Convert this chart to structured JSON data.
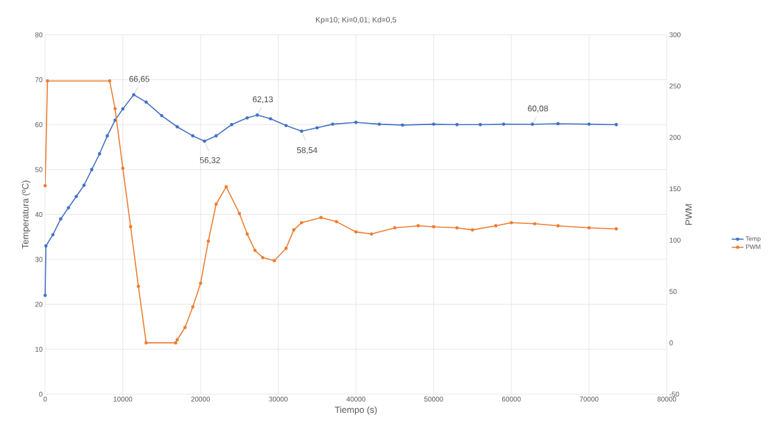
{
  "chart_data": {
    "type": "line",
    "title": "Kp=10; Ki=0,01; Kd=0,5",
    "xlabel": "Tiempo (s)",
    "ylabel": "Temperatura (ºC)",
    "y2label": "PWM",
    "xlim": [
      0,
      80000
    ],
    "xticks": [
      0,
      10000,
      20000,
      30000,
      40000,
      50000,
      60000,
      70000,
      80000
    ],
    "ylim": [
      0,
      80
    ],
    "yticks": [
      0,
      10,
      20,
      30,
      40,
      50,
      60,
      70,
      80
    ],
    "y2lim": [
      -50,
      300
    ],
    "y2ticks": [
      -50,
      0,
      50,
      100,
      150,
      200,
      250,
      300
    ],
    "grid": true,
    "legend": "right",
    "marker": "circle",
    "line_style": "solid",
    "series": [
      {
        "name": "Temp",
        "color": "#4472c4",
        "x": [
          0,
          100,
          1000,
          2000,
          3000,
          4000,
          5000,
          6000,
          7000,
          8000,
          9000,
          10000,
          11400,
          13000,
          15000,
          17000,
          19000,
          20500,
          22000,
          24000,
          26000,
          27300,
          29000,
          31000,
          33000,
          35000,
          37000,
          40000,
          43000,
          46000,
          50000,
          53000,
          56000,
          59000,
          62700,
          66000,
          70000,
          73500
        ],
        "values": [
          22,
          33,
          35.5,
          39,
          41.5,
          44,
          46.5,
          50,
          53.5,
          57.5,
          61,
          63.5,
          66.65,
          65,
          62,
          59.5,
          57.5,
          56.32,
          57.5,
          60,
          61.5,
          62.13,
          61.3,
          59.8,
          58.54,
          59.3,
          60.1,
          60.5,
          60.1,
          59.9,
          60.1,
          60,
          60,
          60.1,
          60.08,
          60.2,
          60.1,
          60
        ]
      },
      {
        "name": "PWM",
        "color": "#ed7d31",
        "axis": "y2",
        "x": [
          0,
          300,
          8300,
          9000,
          10000,
          11000,
          12000,
          13000,
          16800,
          17000,
          18000,
          19000,
          20000,
          21000,
          22000,
          23300,
          25000,
          26000,
          27000,
          28000,
          29500,
          31000,
          32000,
          33000,
          35500,
          37500,
          40000,
          42000,
          45000,
          48000,
          50000,
          53000,
          55000,
          58000,
          60000,
          63000,
          66000,
          70000,
          73500
        ],
        "values": [
          153,
          255,
          255,
          228,
          170,
          113,
          55,
          0,
          0,
          3,
          15,
          35,
          58,
          99,
          135,
          152,
          126,
          106,
          90,
          83,
          80,
          92,
          110,
          117,
          122,
          118,
          108,
          106,
          112,
          114,
          113,
          112,
          110,
          114,
          117,
          116,
          114,
          112,
          111
        ]
      }
    ],
    "annotations": [
      {
        "text": "66,65",
        "x": 11400,
        "y": 66.65
      },
      {
        "text": "56,32",
        "x": 20500,
        "y": 56.32
      },
      {
        "text": "62,13",
        "x": 27300,
        "y": 62.13
      },
      {
        "text": "58,54",
        "x": 33000,
        "y": 58.54
      },
      {
        "text": "60,08",
        "x": 62700,
        "y": 60.08
      }
    ]
  }
}
